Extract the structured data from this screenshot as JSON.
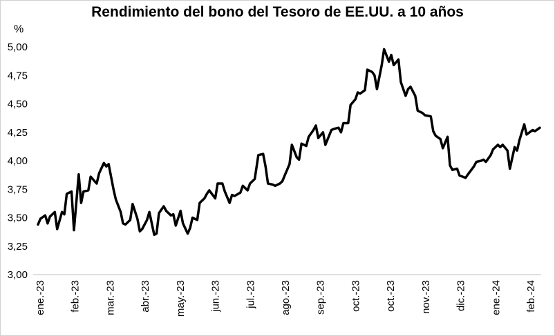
{
  "chart_data": {
    "type": "line",
    "title": "Rendimiento del bono del Tesoro de EE.UU. a 10 años",
    "ylabel": "%",
    "xlabel": "",
    "ylim": [
      3.0,
      5.0
    ],
    "y_ticks": [
      "3,00",
      "3,25",
      "3,50",
      "3,75",
      "4,00",
      "4,25",
      "4,50",
      "4,75",
      "5,00"
    ],
    "x_ticks": [
      "ene.-23",
      "feb.-23",
      "mar.-23",
      "abr.-23",
      "may.-23",
      "jun.-23",
      "jul.-23",
      "ago.-23",
      "sep.-23",
      "oct.-23",
      "oct.-23",
      "nov.-23",
      "dic.-23",
      "ene.-24",
      "feb.-24"
    ],
    "grid": false,
    "legend": "none",
    "line_color": "#000000",
    "series": [
      {
        "x": [
          "2023-01-03",
          "2023-01-05",
          "2023-01-09",
          "2023-01-11",
          "2023-01-13",
          "2023-01-17",
          "2023-01-19",
          "2023-01-23",
          "2023-01-25",
          "2023-01-27",
          "2023-01-31",
          "2023-02-02",
          "2023-02-06",
          "2023-02-08",
          "2023-02-10",
          "2023-02-14",
          "2023-02-16",
          "2023-02-21",
          "2023-02-23",
          "2023-02-27",
          "2023-03-01",
          "2023-03-03",
          "2023-03-07",
          "2023-03-09",
          "2023-03-13",
          "2023-03-15",
          "2023-03-17",
          "2023-03-21",
          "2023-03-23",
          "2023-03-27",
          "2023-03-29",
          "2023-03-31",
          "2023-04-04",
          "2023-04-06",
          "2023-04-10",
          "2023-04-12",
          "2023-04-14",
          "2023-04-18",
          "2023-04-20",
          "2023-04-24",
          "2023-04-26",
          "2023-04-28",
          "2023-05-02",
          "2023-05-04",
          "2023-05-08",
          "2023-05-10",
          "2023-05-12",
          "2023-05-16",
          "2023-05-18",
          "2023-05-22",
          "2023-05-24",
          "2023-05-26",
          "2023-05-31",
          "2023-06-02",
          "2023-06-06",
          "2023-06-08",
          "2023-06-12",
          "2023-06-14",
          "2023-06-16",
          "2023-06-21",
          "2023-06-23",
          "2023-06-27",
          "2023-06-29",
          "2023-07-03",
          "2023-07-06",
          "2023-07-10",
          "2023-07-12",
          "2023-07-14",
          "2023-07-18",
          "2023-07-20",
          "2023-07-24",
          "2023-07-26",
          "2023-07-28",
          "2023-08-01",
          "2023-08-03",
          "2023-08-07",
          "2023-08-09",
          "2023-08-11",
          "2023-08-15",
          "2023-08-17",
          "2023-08-21",
          "2023-08-23",
          "2023-08-25",
          "2023-08-29",
          "2023-08-31",
          "2023-09-05",
          "2023-09-07",
          "2023-09-11",
          "2023-09-13",
          "2023-09-15",
          "2023-09-19",
          "2023-09-21",
          "2023-09-25",
          "2023-09-27",
          "2023-09-29",
          "2023-10-03",
          "2023-10-05",
          "2023-10-09",
          "2023-10-11",
          "2023-10-13",
          "2023-10-17",
          "2023-10-19",
          "2023-10-23",
          "2023-10-25",
          "2023-10-27",
          "2023-10-31",
          "2023-11-02",
          "2023-11-06",
          "2023-11-08",
          "2023-11-10",
          "2023-11-14",
          "2023-11-16",
          "2023-11-20",
          "2023-11-22",
          "2023-11-27",
          "2023-11-29",
          "2023-12-01",
          "2023-12-05",
          "2023-12-07",
          "2023-12-11",
          "2023-12-13",
          "2023-12-15",
          "2023-12-19",
          "2023-12-21",
          "2023-12-26",
          "2023-12-28",
          "2024-01-02",
          "2024-01-04",
          "2024-01-08",
          "2024-01-10",
          "2024-01-12",
          "2024-01-16",
          "2024-01-18",
          "2024-01-22",
          "2024-01-24",
          "2024-01-26",
          "2024-01-30",
          "2024-02-01",
          "2024-02-05",
          "2024-02-07",
          "2024-02-09",
          "2024-02-13",
          "2024-02-15",
          "2024-02-20",
          "2024-02-22",
          "2024-02-26"
        ],
        "y": [
          3.44,
          3.49,
          3.52,
          3.45,
          3.51,
          3.55,
          3.4,
          3.55,
          3.53,
          3.71,
          3.73,
          3.39,
          3.88,
          3.63,
          3.73,
          3.74,
          3.86,
          3.8,
          3.89,
          3.98,
          3.95,
          3.97,
          3.75,
          3.66,
          3.55,
          3.45,
          3.44,
          3.48,
          3.62,
          3.49,
          3.38,
          3.4,
          3.48,
          3.55,
          3.35,
          3.36,
          3.54,
          3.6,
          3.56,
          3.52,
          3.53,
          3.43,
          3.56,
          3.45,
          3.36,
          3.41,
          3.5,
          3.48,
          3.63,
          3.67,
          3.71,
          3.74,
          3.67,
          3.8,
          3.8,
          3.73,
          3.63,
          3.7,
          3.69,
          3.72,
          3.78,
          3.74,
          3.8,
          3.84,
          4.05,
          4.06,
          3.95,
          3.8,
          3.79,
          3.78,
          3.8,
          3.82,
          3.87,
          3.97,
          4.14,
          4.03,
          4.01,
          4.15,
          4.13,
          4.21,
          4.27,
          4.31,
          4.2,
          4.25,
          4.14,
          4.27,
          4.28,
          4.29,
          4.25,
          4.33,
          4.33,
          4.49,
          4.54,
          4.6,
          4.59,
          4.62,
          4.8,
          4.78,
          4.75,
          4.63,
          4.84,
          4.98,
          4.87,
          4.93,
          4.84,
          4.89,
          4.69,
          4.57,
          4.63,
          4.65,
          4.57,
          4.44,
          4.42,
          4.4,
          4.39,
          4.26,
          4.22,
          4.19,
          4.11,
          4.21,
          3.96,
          3.92,
          3.93,
          3.87,
          3.85,
          3.88,
          3.95,
          3.99,
          4.0,
          4.01,
          3.99,
          4.05,
          4.1,
          4.14,
          4.12,
          4.14,
          4.09,
          3.93,
          4.12,
          4.09,
          4.18,
          4.32,
          4.23,
          4.27,
          4.26,
          4.29
        ]
      }
    ]
  }
}
